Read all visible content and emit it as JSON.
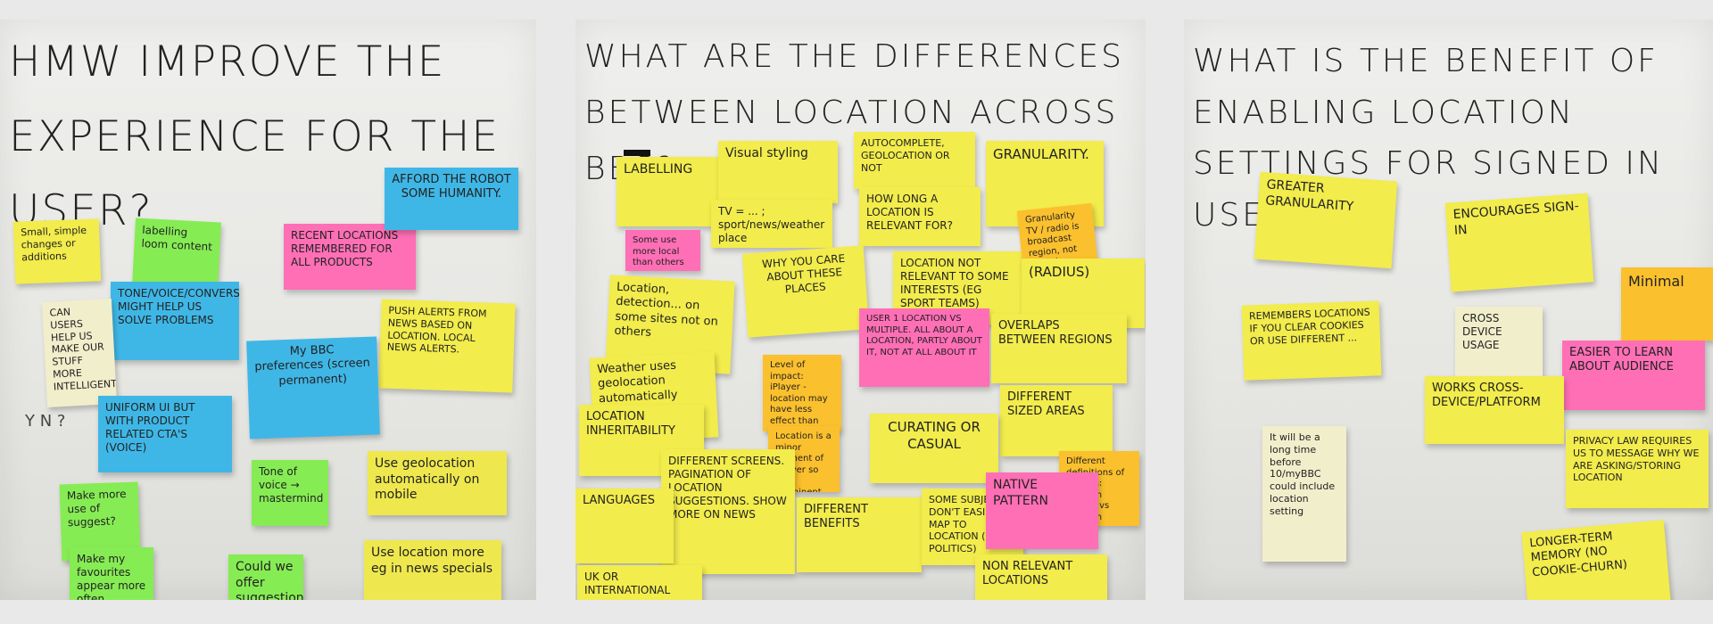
{
  "boards": [
    {
      "title": "HMW improve the experience for the user?",
      "notes": [
        {
          "text": "Small, simple changes or additions",
          "color": "#f2ec4c"
        },
        {
          "text": "labelling loom content",
          "color": "#86ec54"
        },
        {
          "text": "Recent locations remembered for all products",
          "color": "#ff6fb6"
        },
        {
          "text": "Afford the robot some humanity.",
          "color": "#3fb7e6"
        },
        {
          "text": "Tone/voice/conversation might help us solve problems",
          "color": "#3fb7e6"
        },
        {
          "text": "Can users help us make our stuff more intelligent?",
          "color": "#f1eecb"
        },
        {
          "text": "Push alerts from news based on location. Local news alerts.",
          "color": "#f2ec4c"
        },
        {
          "text": "My BBC preferences (screen permanent)",
          "color": "#3fb7e6"
        },
        {
          "text": "Uniform UI but with product related CTA's (voice)",
          "color": "#3fb7e6"
        },
        {
          "text": "Use geolocation automatically on mobile",
          "color": "#f2ec4c"
        },
        {
          "text": "Tone of voice → mastermind",
          "color": "#86ec54"
        },
        {
          "text": "Make more use of suggest?",
          "color": "#86ec54"
        },
        {
          "text": "Use location more eg in news specials",
          "color": "#f2ec4c"
        },
        {
          "text": "Could we offer suggestions",
          "color": "#86ec54"
        },
        {
          "text": "Make my favourites appear more often",
          "color": "#86ec54"
        }
      ],
      "marginalia": "Y N ?"
    },
    {
      "title": "What are the differences between location across BBC?",
      "notes": [
        {
          "text": "Labelling",
          "color": "#f2ec4c"
        },
        {
          "text": "Visual styling",
          "color": "#f2ec4c"
        },
        {
          "text": "Autocomplete, geolocation or not",
          "color": "#f2ec4c"
        },
        {
          "text": "Granularity.",
          "color": "#f2ec4c"
        },
        {
          "text": "TV = ... ; sport/news/weather place",
          "color": "#f2ec4c"
        },
        {
          "text": "How long a location is relevant for?",
          "color": "#f2ec4c"
        },
        {
          "text": "Some use more local than others",
          "color": "#ff6fb6"
        },
        {
          "text": "Why you care about these places",
          "color": "#f2ec4c"
        },
        {
          "text": "Location not relevant to some interests (eg sport teams)",
          "color": "#f2ec4c"
        },
        {
          "text": "Granularity TV / radio is broadcast region, not town / postcode",
          "color": "#fbc02d"
        },
        {
          "text": "(Radius)",
          "color": "#f2ec4c"
        },
        {
          "text": "Location, detection... on some sites not on others",
          "color": "#f2ec4c"
        },
        {
          "text": "User 1 location vs multiple. All about a location, partly about it, not at all about it",
          "color": "#ff6fb6"
        },
        {
          "text": "Overlaps between regions",
          "color": "#f2ec4c"
        },
        {
          "text": "Weather uses geolocation automatically",
          "color": "#f2ec4c"
        },
        {
          "text": "Level of impact: iPlayer - location may have less effect than homepage",
          "color": "#fbc02d"
        },
        {
          "text": "Location inheritability",
          "color": "#f2ec4c"
        },
        {
          "text": "Different sized areas",
          "color": "#f2ec4c"
        },
        {
          "text": "Curating or casual",
          "color": "#f2ec4c"
        },
        {
          "text": "Location is a minor element of iPlayer so less prominent",
          "color": "#fbc02d"
        },
        {
          "text": "Different screens. Pagination of location suggestions. Show more on news",
          "color": "#f2ec4c"
        },
        {
          "text": "Different definitions of regions: Scottish iPlayer vs Scottish London",
          "color": "#fbc02d"
        },
        {
          "text": "Languages",
          "color": "#f2ec4c"
        },
        {
          "text": "Different benefits",
          "color": "#f2ec4c"
        },
        {
          "text": "Some subjects don't easily map to location (eg politics)",
          "color": "#f2ec4c"
        },
        {
          "text": "Native pattern",
          "color": "#ff6fb6"
        },
        {
          "text": "UK or international",
          "color": "#f2ec4c"
        },
        {
          "text": "Non relevant locations",
          "color": "#f2ec4c"
        }
      ]
    },
    {
      "title": "What is the benefit of enabling location settings for signed in users?",
      "notes": [
        {
          "text": "Greater granularity",
          "color": "#f2ec4c"
        },
        {
          "text": "Encourages sign-in",
          "color": "#f2ec4c"
        },
        {
          "text": "Minimal",
          "color": "#fbc02d"
        },
        {
          "text": "Remembers locations if you clear cookies or use different ...",
          "color": "#f2ec4c"
        },
        {
          "text": "Cross device usage",
          "color": "#f1eecb"
        },
        {
          "text": "Easier to learn about audience",
          "color": "#ff6fb6"
        },
        {
          "text": "Works cross-device/platform",
          "color": "#f2ec4c"
        },
        {
          "text": "It will be a long time before 10/myBBC could include location setting",
          "color": "#f1eecb"
        },
        {
          "text": "Privacy law requires us to message why we are asking/storing location",
          "color": "#f2ec4c"
        },
        {
          "text": "Longer-term memory (no cookie-churn)",
          "color": "#f2ec4c"
        }
      ]
    }
  ]
}
